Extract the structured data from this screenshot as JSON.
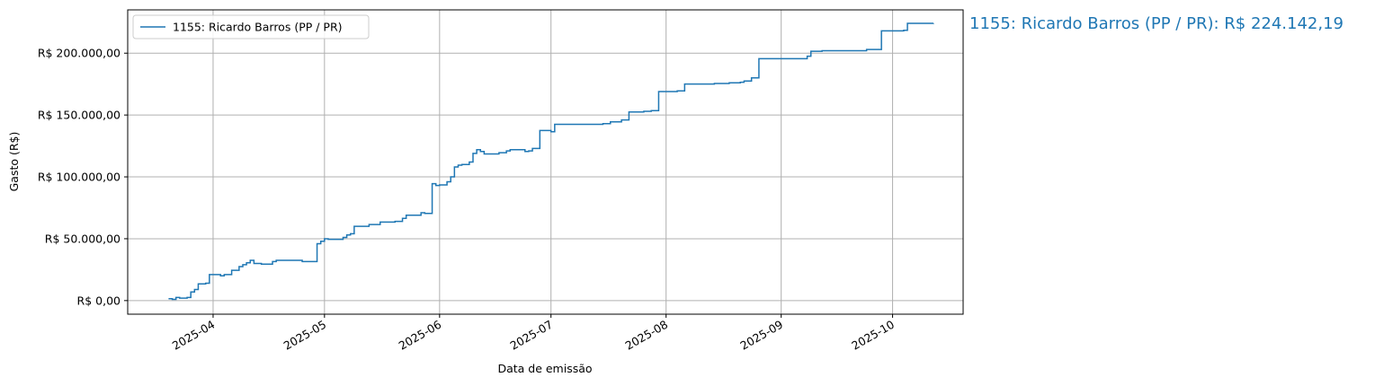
{
  "chart_data": {
    "type": "line",
    "title": "",
    "xlabel": "Data de emissão",
    "ylabel": "Gasto (R$)",
    "ylim": [
      -11000,
      235000
    ],
    "xlim": [
      "2025-03-09",
      "2025-10-20"
    ],
    "grid": true,
    "legend_placement": "top-left",
    "step": true,
    "series_color": "#1f77b4",
    "x_ticks": [
      {
        "date": "2025-04-01",
        "label": "2025-04"
      },
      {
        "date": "2025-05-01",
        "label": "2025-05"
      },
      {
        "date": "2025-06-01",
        "label": "2025-06"
      },
      {
        "date": "2025-07-01",
        "label": "2025-07"
      },
      {
        "date": "2025-08-01",
        "label": "2025-08"
      },
      {
        "date": "2025-09-01",
        "label": "2025-09"
      },
      {
        "date": "2025-10-01",
        "label": "2025-10"
      }
    ],
    "y_ticks": [
      {
        "value": 0,
        "label": "R$ 0,00"
      },
      {
        "value": 50000,
        "label": "R$ 50.000,00"
      },
      {
        "value": 100000,
        "label": "R$ 100.000,00"
      },
      {
        "value": 150000,
        "label": "R$ 150.000,00"
      },
      {
        "value": 200000,
        "label": "R$ 200.000,00"
      }
    ],
    "series": [
      {
        "name": "1155: Ricardo Barros (PP / PR)",
        "points": [
          [
            "2025-03-20",
            1500
          ],
          [
            "2025-03-21",
            1000
          ],
          [
            "2025-03-22",
            2500
          ],
          [
            "2025-03-23",
            2000
          ],
          [
            "2025-03-25",
            2500
          ],
          [
            "2025-03-26",
            7000
          ],
          [
            "2025-03-27",
            9000
          ],
          [
            "2025-03-28",
            13500
          ],
          [
            "2025-03-30",
            14000
          ],
          [
            "2025-03-31",
            21000
          ],
          [
            "2025-04-03",
            20000
          ],
          [
            "2025-04-04",
            21000
          ],
          [
            "2025-04-06",
            24500
          ],
          [
            "2025-04-08",
            27500
          ],
          [
            "2025-04-09",
            29000
          ],
          [
            "2025-04-10",
            30500
          ],
          [
            "2025-04-11",
            32500
          ],
          [
            "2025-04-12",
            30000
          ],
          [
            "2025-04-14",
            29500
          ],
          [
            "2025-04-17",
            31500
          ],
          [
            "2025-04-18",
            32500
          ],
          [
            "2025-04-24",
            32500
          ],
          [
            "2025-04-25",
            31500
          ],
          [
            "2025-04-29",
            46000
          ],
          [
            "2025-04-30",
            48000
          ],
          [
            "2025-05-01",
            50000
          ],
          [
            "2025-05-02",
            49500
          ],
          [
            "2025-05-04",
            49500
          ],
          [
            "2025-05-06",
            51000
          ],
          [
            "2025-05-07",
            53000
          ],
          [
            "2025-05-08",
            54000
          ],
          [
            "2025-05-09",
            60000
          ],
          [
            "2025-05-13",
            61500
          ],
          [
            "2025-05-16",
            63500
          ],
          [
            "2025-05-20",
            64000
          ],
          [
            "2025-05-22",
            66500
          ],
          [
            "2025-05-23",
            69000
          ],
          [
            "2025-05-27",
            71000
          ],
          [
            "2025-05-28",
            70500
          ],
          [
            "2025-05-30",
            94500
          ],
          [
            "2025-05-31",
            93000
          ],
          [
            "2025-06-01",
            93500
          ],
          [
            "2025-06-03",
            96000
          ],
          [
            "2025-06-04",
            100000
          ],
          [
            "2025-06-05",
            108000
          ],
          [
            "2025-06-06",
            109500
          ],
          [
            "2025-06-07",
            110000
          ],
          [
            "2025-06-09",
            112000
          ],
          [
            "2025-06-10",
            119000
          ],
          [
            "2025-06-11",
            122000
          ],
          [
            "2025-06-12",
            120500
          ],
          [
            "2025-06-13",
            118500
          ],
          [
            "2025-06-17",
            119500
          ],
          [
            "2025-06-19",
            121000
          ],
          [
            "2025-06-20",
            122000
          ],
          [
            "2025-06-24",
            120500
          ],
          [
            "2025-06-25",
            121000
          ],
          [
            "2025-06-26",
            123000
          ],
          [
            "2025-06-28",
            137500
          ],
          [
            "2025-07-01",
            136500
          ],
          [
            "2025-07-02",
            142500
          ],
          [
            "2025-07-15",
            143000
          ],
          [
            "2025-07-17",
            144500
          ],
          [
            "2025-07-20",
            146000
          ],
          [
            "2025-07-22",
            152500
          ],
          [
            "2025-07-26",
            153000
          ],
          [
            "2025-07-28",
            153500
          ],
          [
            "2025-07-30",
            169000
          ],
          [
            "2025-08-04",
            169500
          ],
          [
            "2025-08-06",
            175000
          ],
          [
            "2025-08-14",
            175500
          ],
          [
            "2025-08-18",
            176000
          ],
          [
            "2025-08-21",
            176500
          ],
          [
            "2025-08-22",
            177500
          ],
          [
            "2025-08-24",
            180000
          ],
          [
            "2025-08-26",
            195500
          ],
          [
            "2025-09-08",
            197500
          ],
          [
            "2025-09-09",
            201500
          ],
          [
            "2025-09-12",
            202000
          ],
          [
            "2025-09-24",
            203000
          ],
          [
            "2025-09-28",
            218000
          ],
          [
            "2025-10-04",
            218500
          ],
          [
            "2025-10-05",
            224100
          ],
          [
            "2025-10-12",
            224142.19
          ]
        ]
      }
    ]
  },
  "annotation": {
    "text": "1155: Ricardo Barros (PP / PR): R$ 224.142,19",
    "color": "#1f77b4"
  }
}
